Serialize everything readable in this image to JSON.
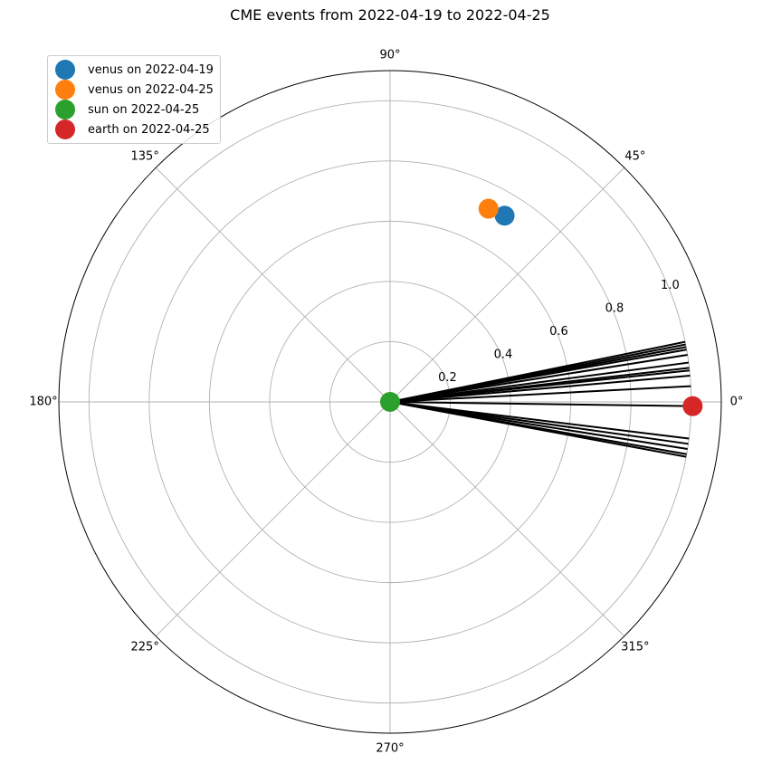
{
  "chart_data": {
    "type": "scatter",
    "projection": "polar",
    "title": "CME events from 2022-04-19 to 2022-04-25",
    "theta_unit": "degrees",
    "theta_tick_labels": [
      "0°",
      "45°",
      "90°",
      "135°",
      "180°",
      "225°",
      "270°",
      "315°"
    ],
    "r_tick_labels": [
      "0.2",
      "0.4",
      "0.6",
      "0.8",
      "1.0"
    ],
    "r_ticks": [
      0.2,
      0.4,
      0.6,
      0.8,
      1.0
    ],
    "rlim": [
      0,
      1.1
    ],
    "grid": true,
    "legend_position": "upper-left",
    "series": [
      {
        "name": "venus on 2022-04-19",
        "color": "#1f77b4",
        "points": [
          {
            "theta": 58.4,
            "r": 0.726
          }
        ]
      },
      {
        "name": "venus on 2022-04-25",
        "color": "#ff7f0e",
        "points": [
          {
            "theta": 63.0,
            "r": 0.72
          }
        ]
      },
      {
        "name": "sun on 2022-04-25",
        "color": "#2ca02c",
        "points": [
          {
            "theta": 0,
            "r": 0.0
          }
        ]
      },
      {
        "name": "earth on 2022-04-25",
        "color": "#d62728",
        "points": [
          {
            "theta": -0.8,
            "r": 1.005
          }
        ]
      }
    ],
    "cme_lines": {
      "color": "#000000",
      "r": 1.0,
      "theta": [
        11.5,
        11.0,
        10.5,
        10.0,
        9.0,
        7.5,
        6.5,
        6.0,
        5.0,
        3.0,
        -0.8,
        -7.0,
        -8.0,
        -9.0,
        -10.0,
        -10.5
      ]
    }
  }
}
